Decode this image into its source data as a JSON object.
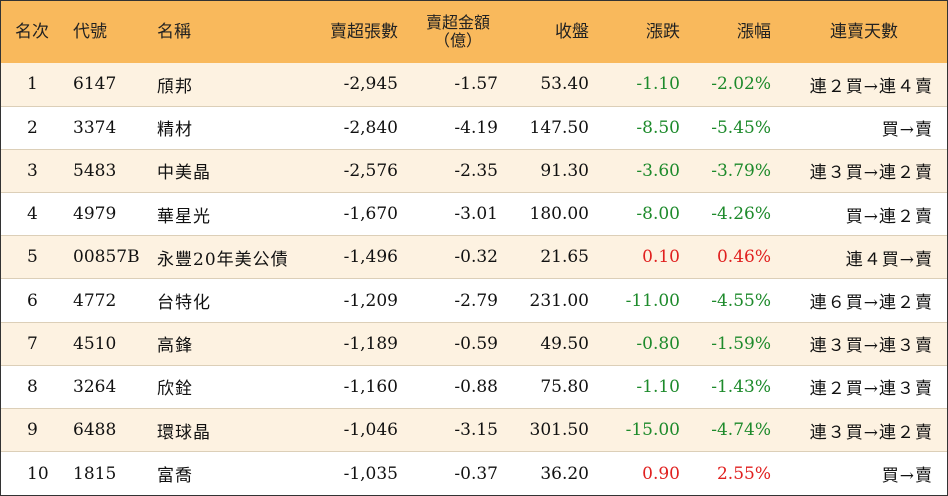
{
  "headers": {
    "rank": "名次",
    "code": "代號",
    "name": "名稱",
    "net_sell_lots": "賣超張數",
    "net_sell_amount_line1": "賣超金額",
    "net_sell_amount_line2": "（億）",
    "close": "收盤",
    "change": "漲跌",
    "change_pct": "漲幅",
    "consecutive_days": "連賣天數"
  },
  "colors": {
    "header_bg": "#f9b95c",
    "alt_row_bg": "#fdf2e1",
    "up": "#e0201f",
    "down": "#1d8a2b"
  },
  "rows": [
    {
      "rank": "1",
      "code": "6147",
      "name": "頎邦",
      "lots": "-2,945",
      "amount": "-1.57",
      "close": "53.40",
      "change": "-1.10",
      "pct": "-2.02%",
      "dir": "down",
      "days": "連２買→連４賣"
    },
    {
      "rank": "2",
      "code": "3374",
      "name": "精材",
      "lots": "-2,840",
      "amount": "-4.19",
      "close": "147.50",
      "change": "-8.50",
      "pct": "-5.45%",
      "dir": "down",
      "days": "買→賣"
    },
    {
      "rank": "3",
      "code": "5483",
      "name": "中美晶",
      "lots": "-2,576",
      "amount": "-2.35",
      "close": "91.30",
      "change": "-3.60",
      "pct": "-3.79%",
      "dir": "down",
      "days": "連３買→連２賣"
    },
    {
      "rank": "4",
      "code": "4979",
      "name": "華星光",
      "lots": "-1,670",
      "amount": "-3.01",
      "close": "180.00",
      "change": "-8.00",
      "pct": "-4.26%",
      "dir": "down",
      "days": "買→連２賣"
    },
    {
      "rank": "5",
      "code": "00857B",
      "name": "永豐20年美公債",
      "lots": "-1,496",
      "amount": "-0.32",
      "close": "21.65",
      "change": "0.10",
      "pct": "0.46%",
      "dir": "up",
      "days": "連４買→賣"
    },
    {
      "rank": "6",
      "code": "4772",
      "name": "台特化",
      "lots": "-1,209",
      "amount": "-2.79",
      "close": "231.00",
      "change": "-11.00",
      "pct": "-4.55%",
      "dir": "down",
      "days": "連６買→連２賣"
    },
    {
      "rank": "7",
      "code": "4510",
      "name": "高鋒",
      "lots": "-1,189",
      "amount": "-0.59",
      "close": "49.50",
      "change": "-0.80",
      "pct": "-1.59%",
      "dir": "down",
      "days": "連３買→連３賣"
    },
    {
      "rank": "8",
      "code": "3264",
      "name": "欣銓",
      "lots": "-1,160",
      "amount": "-0.88",
      "close": "75.80",
      "change": "-1.10",
      "pct": "-1.43%",
      "dir": "down",
      "days": "連２買→連３賣"
    },
    {
      "rank": "9",
      "code": "6488",
      "name": "環球晶",
      "lots": "-1,046",
      "amount": "-3.15",
      "close": "301.50",
      "change": "-15.00",
      "pct": "-4.74%",
      "dir": "down",
      "days": "連３買→連２賣"
    },
    {
      "rank": "10",
      "code": "1815",
      "name": "富喬",
      "lots": "-1,035",
      "amount": "-0.37",
      "close": "36.20",
      "change": "0.90",
      "pct": "2.55%",
      "dir": "up",
      "days": "買→賣"
    }
  ]
}
